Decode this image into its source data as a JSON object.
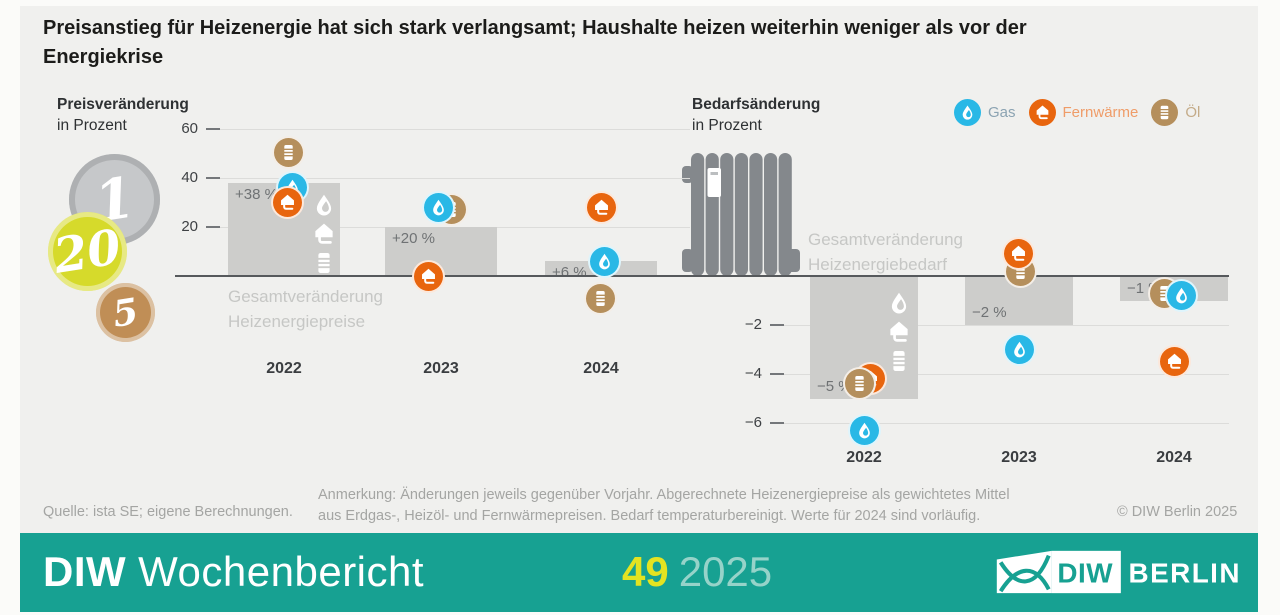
{
  "headline": "Preisanstieg für Heizenergie hat sich stark verlangsamt; Haushalte heizen weiterhin weniger als vor der Energiekrise",
  "coins": {
    "one": "1",
    "twenty": "20",
    "five": "5"
  },
  "legend": [
    {
      "key": "gas",
      "label": "Gas"
    },
    {
      "key": "fernwaerme",
      "label": "Fernwärme"
    },
    {
      "key": "oel",
      "label": "Öl"
    }
  ],
  "colors": {
    "gas": "#29b8e6",
    "fernwaerme": "#e8650e",
    "oel": "#b58f5c",
    "gas_label": "#8ba3b2",
    "fernwaerme_label": "#ef9c68",
    "oel_label": "#c4ab88",
    "bar": "#cdcdcb",
    "banner": "#17a192",
    "issue_number": "#e4e321",
    "issue_year": "#96d3c9"
  },
  "chart_data": [
    {
      "type": "bar",
      "title": "Preisveränderung",
      "subtitle": "in Prozent",
      "categories": [
        "2022",
        "2023",
        "2024"
      ],
      "values": [
        38,
        20,
        6
      ],
      "bar_labels": [
        "+38 %",
        "+20 %",
        "+6 %"
      ],
      "yticks": [
        20,
        40,
        60
      ],
      "ylim": [
        -12,
        62
      ],
      "annotation": [
        "Gesamtveränderung",
        "Heizenergiepreise"
      ],
      "series": [
        {
          "name": "Gas",
          "key": "gas",
          "values": [
            36,
            28,
            6
          ]
        },
        {
          "name": "Fernwärme",
          "key": "fernwaerme",
          "values": [
            30,
            0,
            28
          ]
        },
        {
          "name": "Öl",
          "key": "oel",
          "values": [
            50.5,
            27,
            -9
          ]
        }
      ]
    },
    {
      "type": "bar",
      "title": "Bedarfsänderung",
      "subtitle": "in Prozent",
      "categories": [
        "2022",
        "2023",
        "2024"
      ],
      "values": [
        -5,
        -2,
        -1
      ],
      "bar_labels": [
        "−5 %",
        "−2 %",
        "−1 %"
      ],
      "yticks": [
        -2,
        -4,
        -6
      ],
      "ylim": [
        -6.8,
        1.2
      ],
      "annotation": [
        "Gesamtveränderung",
        "Heizenergiebedarf"
      ],
      "series": [
        {
          "name": "Gas",
          "key": "gas",
          "values": [
            -6.3,
            -3,
            -0.8
          ]
        },
        {
          "name": "Fernwärme",
          "key": "fernwaerme",
          "values": [
            -4.2,
            0.9,
            -3.5
          ]
        },
        {
          "name": "Öl",
          "key": "oel",
          "values": [
            -4.4,
            0.2,
            -0.7
          ]
        }
      ]
    }
  ],
  "footer": {
    "source": "Quelle: ista SE; eigene Berechnungen.",
    "note": "Anmerkung: Änderungen jeweils gegenüber Vorjahr. Abgerechnete Heizenergiepreise als gewichtetes Mittel aus Erdgas-, Heizöl- und Fernwärmepreisen. Bedarf temperaturbereinigt. Werte für 2024 sind vorläufig.",
    "copyright": "© DIW Berlin 2025"
  },
  "banner": {
    "brand_bold": "DIW",
    "brand_regular": "Wochenbericht",
    "issue": "49",
    "year": "2025",
    "logo_diw": "DIW",
    "logo_berlin": "BERLIN"
  }
}
